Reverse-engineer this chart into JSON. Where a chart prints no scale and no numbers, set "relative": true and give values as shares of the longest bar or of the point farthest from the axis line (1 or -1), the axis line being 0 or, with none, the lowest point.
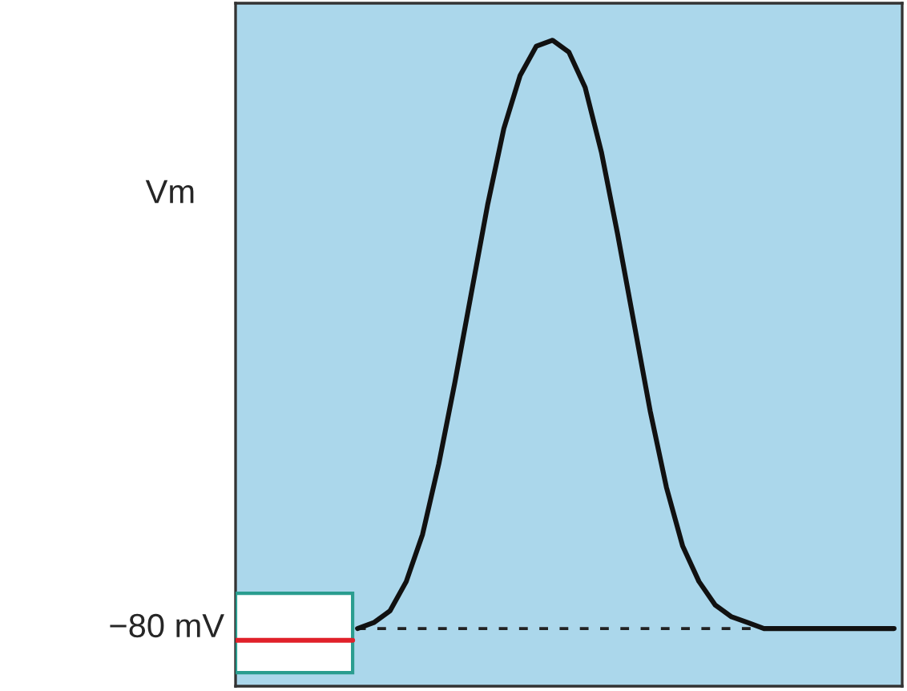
{
  "chart_data": {
    "type": "line",
    "relative": true,
    "ylabel": "Vm",
    "categories": [
      null,
      null,
      null,
      null,
      null,
      null,
      null,
      null,
      null,
      null,
      null,
      null,
      null,
      null,
      null,
      null,
      null,
      null,
      null,
      null,
      null,
      null,
      null,
      null,
      null,
      null,
      null,
      null,
      null,
      null,
      null,
      null,
      null,
      null,
      null,
      null,
      null,
      null,
      null,
      null,
      null
    ],
    "series": [
      {
        "color": "#111111",
        "values": [
          null,
          null,
          null,
          null,
          null,
          null,
          null,
          0,
          0.01,
          0.03,
          0.08,
          0.16,
          0.28,
          0.42,
          0.57,
          0.72,
          0.85,
          0.94,
          0.99,
          1,
          0.98,
          0.92,
          0.81,
          0.67,
          0.52,
          0.37,
          0.24,
          0.14,
          0.08,
          0.04,
          0.02,
          0.01,
          0,
          0,
          0,
          0,
          0,
          0,
          0,
          0,
          0
        ]
      }
    ],
    "ref_lines": [
      {
        "axis": "y",
        "value": 0,
        "label": "−80 mV",
        "line_style": "dashed",
        "color": "#222222"
      }
    ],
    "grid": false,
    "legend": false,
    "marker": "none",
    "line_style": "solid"
  }
}
